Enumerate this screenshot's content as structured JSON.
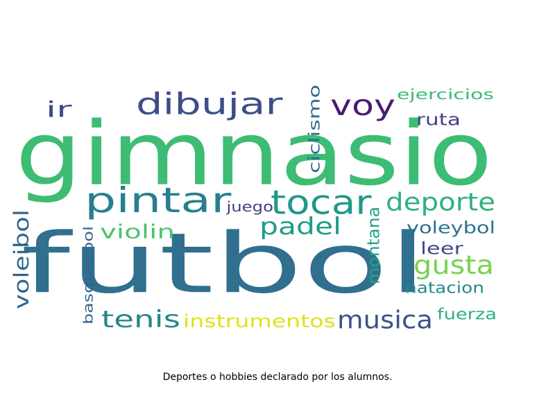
{
  "caption": "Deportes o hobbies declarado por los alumnos.",
  "chart_data": {
    "type": "wordcloud",
    "words": [
      {
        "text": "gimnasio",
        "rank": 2,
        "color": "#3dbc74"
      },
      {
        "text": "futbol",
        "rank": 1,
        "color": "#316f8f"
      },
      {
        "text": "dibujar",
        "rank": 5,
        "color": "#3c4e8a"
      },
      {
        "text": "voy",
        "rank": 6,
        "color": "#481d6f"
      },
      {
        "text": "ir",
        "rank": 12,
        "color": "#3e4989"
      },
      {
        "text": "ciclismo",
        "rank": 17,
        "color": "#2f6b8e"
      },
      {
        "text": "ejercicios",
        "rank": 19,
        "color": "#3aba76"
      },
      {
        "text": "ruta",
        "rank": 20,
        "color": "#424186"
      },
      {
        "text": "pintar",
        "rank": 3,
        "color": "#277f8e"
      },
      {
        "text": "tocar",
        "rank": 4,
        "color": "#1f988b"
      },
      {
        "text": "deporte",
        "rank": 7,
        "color": "#2db27d"
      },
      {
        "text": "juego",
        "rank": 21,
        "color": "#433e85"
      },
      {
        "text": "padel",
        "rank": 9,
        "color": "#1e9b8a"
      },
      {
        "text": "violin",
        "rank": 13,
        "color": "#4cc26c"
      },
      {
        "text": "voleibol",
        "rank": 14,
        "color": "#31668e"
      },
      {
        "text": "montana",
        "rank": 18,
        "color": "#20a386"
      },
      {
        "text": "voleybol",
        "rank": 15,
        "color": "#2c728e"
      },
      {
        "text": "leer",
        "rank": 22,
        "color": "#3e4a89"
      },
      {
        "text": "gusta",
        "rank": 8,
        "color": "#7ad151"
      },
      {
        "text": "basquetbol",
        "rank": 23,
        "color": "#33638d"
      },
      {
        "text": "natacion",
        "rank": 16,
        "color": "#23888e"
      },
      {
        "text": "tenis",
        "rank": 10,
        "color": "#25858e"
      },
      {
        "text": "instrumentos",
        "rank": 11,
        "color": "#dde318"
      },
      {
        "text": "musica",
        "rank": 24,
        "color": "#3b528b"
      },
      {
        "text": "fuerza",
        "rank": 25,
        "color": "#2ab07f"
      }
    ]
  }
}
